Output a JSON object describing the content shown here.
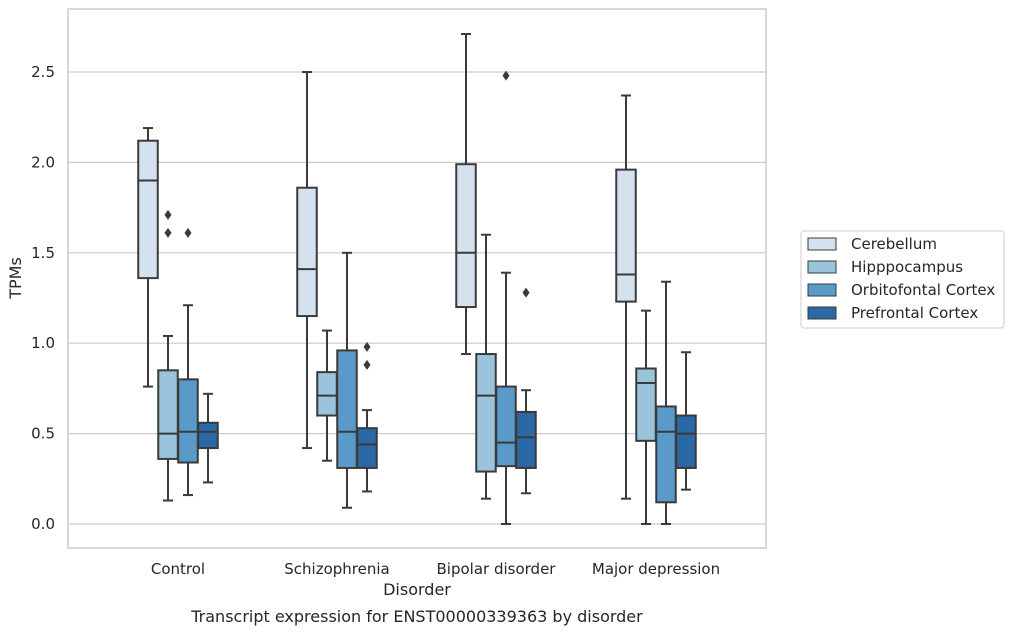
{
  "chart_data": {
    "type": "box",
    "xlabel": "Disorder",
    "ylabel": "TPMs",
    "caption": "Transcript expression for ENST00000339363 by disorder",
    "ylim": [
      -0.13,
      2.85
    ],
    "yticks": [
      "0.0",
      "0.5",
      "1.0",
      "1.5",
      "2.0",
      "2.5"
    ],
    "grid": "horizontal",
    "legend_position": "right",
    "categories": [
      "Control",
      "Schizophrenia",
      "Bipolar disorder",
      "Major depression"
    ],
    "series": [
      {
        "name": "Cerebellum",
        "color": "#d4e2f0",
        "boxes": [
          {
            "whisker_low": 0.76,
            "q1": 1.36,
            "median": 1.9,
            "q3": 2.12,
            "whisker_high": 2.19,
            "outliers": []
          },
          {
            "whisker_low": 0.42,
            "q1": 1.15,
            "median": 1.41,
            "q3": 1.86,
            "whisker_high": 2.5,
            "outliers": []
          },
          {
            "whisker_low": 0.94,
            "q1": 1.2,
            "median": 1.5,
            "q3": 1.99,
            "whisker_high": 2.71,
            "outliers": []
          },
          {
            "whisker_low": 0.14,
            "q1": 1.23,
            "median": 1.38,
            "q3": 1.96,
            "whisker_high": 2.37,
            "outliers": []
          }
        ]
      },
      {
        "name": "Hipppocampus",
        "color": "#9ac4dc",
        "boxes": [
          {
            "whisker_low": 0.13,
            "q1": 0.36,
            "median": 0.5,
            "q3": 0.85,
            "whisker_high": 1.04,
            "outliers": [
              1.61,
              1.71
            ]
          },
          {
            "whisker_low": 0.35,
            "q1": 0.6,
            "median": 0.71,
            "q3": 0.84,
            "whisker_high": 1.07,
            "outliers": []
          },
          {
            "whisker_low": 0.14,
            "q1": 0.29,
            "median": 0.71,
            "q3": 0.94,
            "whisker_high": 1.6,
            "outliers": []
          },
          {
            "whisker_low": 0.0,
            "q1": 0.46,
            "median": 0.78,
            "q3": 0.86,
            "whisker_high": 1.18,
            "outliers": []
          }
        ]
      },
      {
        "name": "Orbitofontal Cortex",
        "color": "#5a9ac8",
        "boxes": [
          {
            "whisker_low": 0.16,
            "q1": 0.34,
            "median": 0.51,
            "q3": 0.8,
            "whisker_high": 1.21,
            "outliers": [
              1.61
            ]
          },
          {
            "whisker_low": 0.09,
            "q1": 0.31,
            "median": 0.51,
            "q3": 0.96,
            "whisker_high": 1.5,
            "outliers": []
          },
          {
            "whisker_low": 0.0,
            "q1": 0.32,
            "median": 0.45,
            "q3": 0.76,
            "whisker_high": 1.39,
            "outliers": [
              2.48
            ]
          },
          {
            "whisker_low": 0.0,
            "q1": 0.12,
            "median": 0.51,
            "q3": 0.65,
            "whisker_high": 1.34,
            "outliers": []
          }
        ]
      },
      {
        "name": "Prefrontal Cortex",
        "color": "#2a68a6",
        "boxes": [
          {
            "whisker_low": 0.23,
            "q1": 0.42,
            "median": 0.51,
            "q3": 0.56,
            "whisker_high": 0.72,
            "outliers": []
          },
          {
            "whisker_low": 0.18,
            "q1": 0.31,
            "median": 0.44,
            "q3": 0.53,
            "whisker_high": 0.63,
            "outliers": [
              0.88,
              0.98
            ]
          },
          {
            "whisker_low": 0.17,
            "q1": 0.31,
            "median": 0.48,
            "q3": 0.62,
            "whisker_high": 0.74,
            "outliers": [
              1.28
            ]
          },
          {
            "whisker_low": 0.19,
            "q1": 0.31,
            "median": 0.5,
            "q3": 0.6,
            "whisker_high": 0.95,
            "outliers": []
          }
        ]
      }
    ]
  }
}
